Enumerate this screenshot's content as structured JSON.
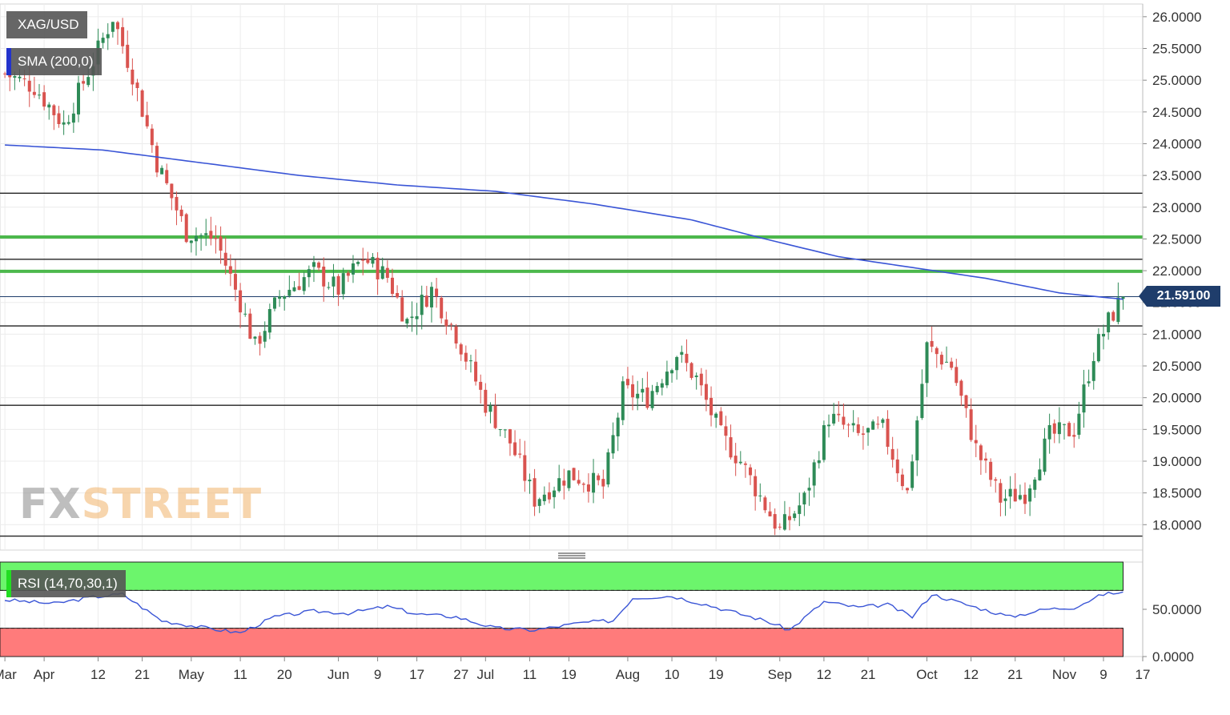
{
  "header": {
    "pair_label": "XAG/USD",
    "sma_label": "SMA (200,0)",
    "rsi_label": "RSI (14,70,30,1)",
    "current_price_tag": "21.59100",
    "watermark_fx": "FX",
    "watermark_street": "STREET"
  },
  "colors": {
    "up_candle": "#2e8b57",
    "down_candle": "#d9534f",
    "sma_line": "#3a55d6",
    "support_green": "#4cb84c",
    "horizontal_black": "#222222",
    "rsi_overbought": "#6cf56c",
    "rsi_oversold": "#ff7b7b",
    "rsi_line": "#3a55d6",
    "price_tag_bg": "#1f3d6b"
  },
  "chart_data": [
    {
      "type": "candlestick",
      "series_name": "XAG/USD",
      "y_axis_ticks": [
        "26.0000",
        "25.5000",
        "25.0000",
        "24.5000",
        "24.0000",
        "23.5000",
        "23.0000",
        "22.5000",
        "22.0000",
        "21.5000",
        "21.0000",
        "20.5000",
        "20.0000",
        "19.5000",
        "19.0000",
        "18.5000",
        "18.0000"
      ],
      "ylim": [
        17.6,
        26.2
      ],
      "x_axis_ticks": [
        {
          "label": "Mar",
          "day": 0
        },
        {
          "label": "Apr",
          "day": 8
        },
        {
          "label": "12",
          "day": 19
        },
        {
          "label": "21",
          "day": 28
        },
        {
          "label": "May",
          "day": 38
        },
        {
          "label": "11",
          "day": 48
        },
        {
          "label": "20",
          "day": 57
        },
        {
          "label": "Jun",
          "day": 68
        },
        {
          "label": "9",
          "day": 76
        },
        {
          "label": "17",
          "day": 84
        },
        {
          "label": "27",
          "day": 93
        },
        {
          "label": "Jul",
          "day": 98
        },
        {
          "label": "11",
          "day": 107
        },
        {
          "label": "19",
          "day": 115
        },
        {
          "label": "Aug",
          "day": 127
        },
        {
          "label": "10",
          "day": 136
        },
        {
          "label": "19",
          "day": 145
        },
        {
          "label": "Sep",
          "day": 158
        },
        {
          "label": "12",
          "day": 167
        },
        {
          "label": "21",
          "day": 176
        },
        {
          "label": "Oct",
          "day": 188
        },
        {
          "label": "12",
          "day": 197
        },
        {
          "label": "21",
          "day": 206
        },
        {
          "label": "Nov",
          "day": 216
        },
        {
          "label": "9",
          "day": 224
        },
        {
          "label": "17",
          "day": 232
        }
      ],
      "current_price": 21.591,
      "horizontal_levels": [
        {
          "value": 23.22,
          "style": "black"
        },
        {
          "value": 22.53,
          "style": "green"
        },
        {
          "value": 22.18,
          "style": "black"
        },
        {
          "value": 21.99,
          "style": "green"
        },
        {
          "value": 21.591,
          "style": "blue-thin"
        },
        {
          "value": 21.13,
          "style": "black"
        },
        {
          "value": 19.88,
          "style": "black"
        },
        {
          "value": 17.82,
          "style": "black"
        }
      ],
      "price_keypoints": [
        {
          "day": 0,
          "close": 25.1
        },
        {
          "day": 6,
          "close": 24.9
        },
        {
          "day": 12,
          "close": 24.3
        },
        {
          "day": 18,
          "close": 25.3
        },
        {
          "day": 22,
          "close": 26.0
        },
        {
          "day": 26,
          "close": 25.1
        },
        {
          "day": 31,
          "close": 23.7
        },
        {
          "day": 37,
          "close": 22.6
        },
        {
          "day": 43,
          "close": 22.5
        },
        {
          "day": 48,
          "close": 21.5
        },
        {
          "day": 51,
          "close": 20.8
        },
        {
          "day": 56,
          "close": 21.6
        },
        {
          "day": 63,
          "close": 22.0
        },
        {
          "day": 68,
          "close": 21.7
        },
        {
          "day": 73,
          "close": 22.2
        },
        {
          "day": 78,
          "close": 21.9
        },
        {
          "day": 82,
          "close": 21.2
        },
        {
          "day": 87,
          "close": 21.7
        },
        {
          "day": 92,
          "close": 21.0
        },
        {
          "day": 98,
          "close": 19.9
        },
        {
          "day": 103,
          "close": 19.3
        },
        {
          "day": 108,
          "close": 18.4
        },
        {
          "day": 115,
          "close": 18.8
        },
        {
          "day": 122,
          "close": 18.6
        },
        {
          "day": 126,
          "close": 20.1
        },
        {
          "day": 131,
          "close": 20.0
        },
        {
          "day": 137,
          "close": 20.7
        },
        {
          "day": 141,
          "close": 20.3
        },
        {
          "day": 146,
          "close": 19.4
        },
        {
          "day": 150,
          "close": 19.0
        },
        {
          "day": 155,
          "close": 18.3
        },
        {
          "day": 158,
          "close": 17.9
        },
        {
          "day": 163,
          "close": 18.4
        },
        {
          "day": 168,
          "close": 19.7
        },
        {
          "day": 174,
          "close": 19.4
        },
        {
          "day": 179,
          "close": 19.5
        },
        {
          "day": 184,
          "close": 18.5
        },
        {
          "day": 188,
          "close": 20.8
        },
        {
          "day": 193,
          "close": 20.5
        },
        {
          "day": 198,
          "close": 19.2
        },
        {
          "day": 203,
          "close": 18.4
        },
        {
          "day": 208,
          "close": 18.5
        },
        {
          "day": 213,
          "close": 19.4
        },
        {
          "day": 218,
          "close": 19.5
        },
        {
          "day": 222,
          "close": 20.7
        },
        {
          "day": 225,
          "close": 21.2
        },
        {
          "day": 228,
          "close": 21.6
        }
      ],
      "sma_200_keypoints": [
        {
          "day": 0,
          "value": 23.98
        },
        {
          "day": 20,
          "value": 23.9
        },
        {
          "day": 40,
          "value": 23.7
        },
        {
          "day": 60,
          "value": 23.5
        },
        {
          "day": 80,
          "value": 23.35
        },
        {
          "day": 100,
          "value": 23.25
        },
        {
          "day": 120,
          "value": 23.05
        },
        {
          "day": 140,
          "value": 22.8
        },
        {
          "day": 155,
          "value": 22.5
        },
        {
          "day": 170,
          "value": 22.22
        },
        {
          "day": 185,
          "value": 22.05
        },
        {
          "day": 200,
          "value": 21.88
        },
        {
          "day": 215,
          "value": 21.65
        },
        {
          "day": 228,
          "value": 21.55
        }
      ]
    },
    {
      "type": "line",
      "series_name": "RSI (14,70,30,1)",
      "y_axis_ticks": [
        "50.0000",
        "0.0000"
      ],
      "ylim": [
        0,
        100
      ],
      "overbought": 70,
      "oversold": 30,
      "rsi_keypoints": [
        {
          "day": 0,
          "value": 60
        },
        {
          "day": 10,
          "value": 56
        },
        {
          "day": 18,
          "value": 63
        },
        {
          "day": 24,
          "value": 66
        },
        {
          "day": 32,
          "value": 38
        },
        {
          "day": 40,
          "value": 31
        },
        {
          "day": 48,
          "value": 25
        },
        {
          "day": 55,
          "value": 42
        },
        {
          "day": 63,
          "value": 48
        },
        {
          "day": 70,
          "value": 46
        },
        {
          "day": 78,
          "value": 53
        },
        {
          "day": 84,
          "value": 45
        },
        {
          "day": 92,
          "value": 42
        },
        {
          "day": 100,
          "value": 30
        },
        {
          "day": 108,
          "value": 28
        },
        {
          "day": 118,
          "value": 36
        },
        {
          "day": 124,
          "value": 38
        },
        {
          "day": 128,
          "value": 62
        },
        {
          "day": 136,
          "value": 64
        },
        {
          "day": 143,
          "value": 55
        },
        {
          "day": 150,
          "value": 45
        },
        {
          "day": 155,
          "value": 38
        },
        {
          "day": 160,
          "value": 28
        },
        {
          "day": 167,
          "value": 58
        },
        {
          "day": 174,
          "value": 52
        },
        {
          "day": 180,
          "value": 55
        },
        {
          "day": 185,
          "value": 42
        },
        {
          "day": 189,
          "value": 66
        },
        {
          "day": 196,
          "value": 55
        },
        {
          "day": 205,
          "value": 42
        },
        {
          "day": 212,
          "value": 50
        },
        {
          "day": 218,
          "value": 52
        },
        {
          "day": 224,
          "value": 66
        },
        {
          "day": 228,
          "value": 68
        }
      ]
    }
  ]
}
